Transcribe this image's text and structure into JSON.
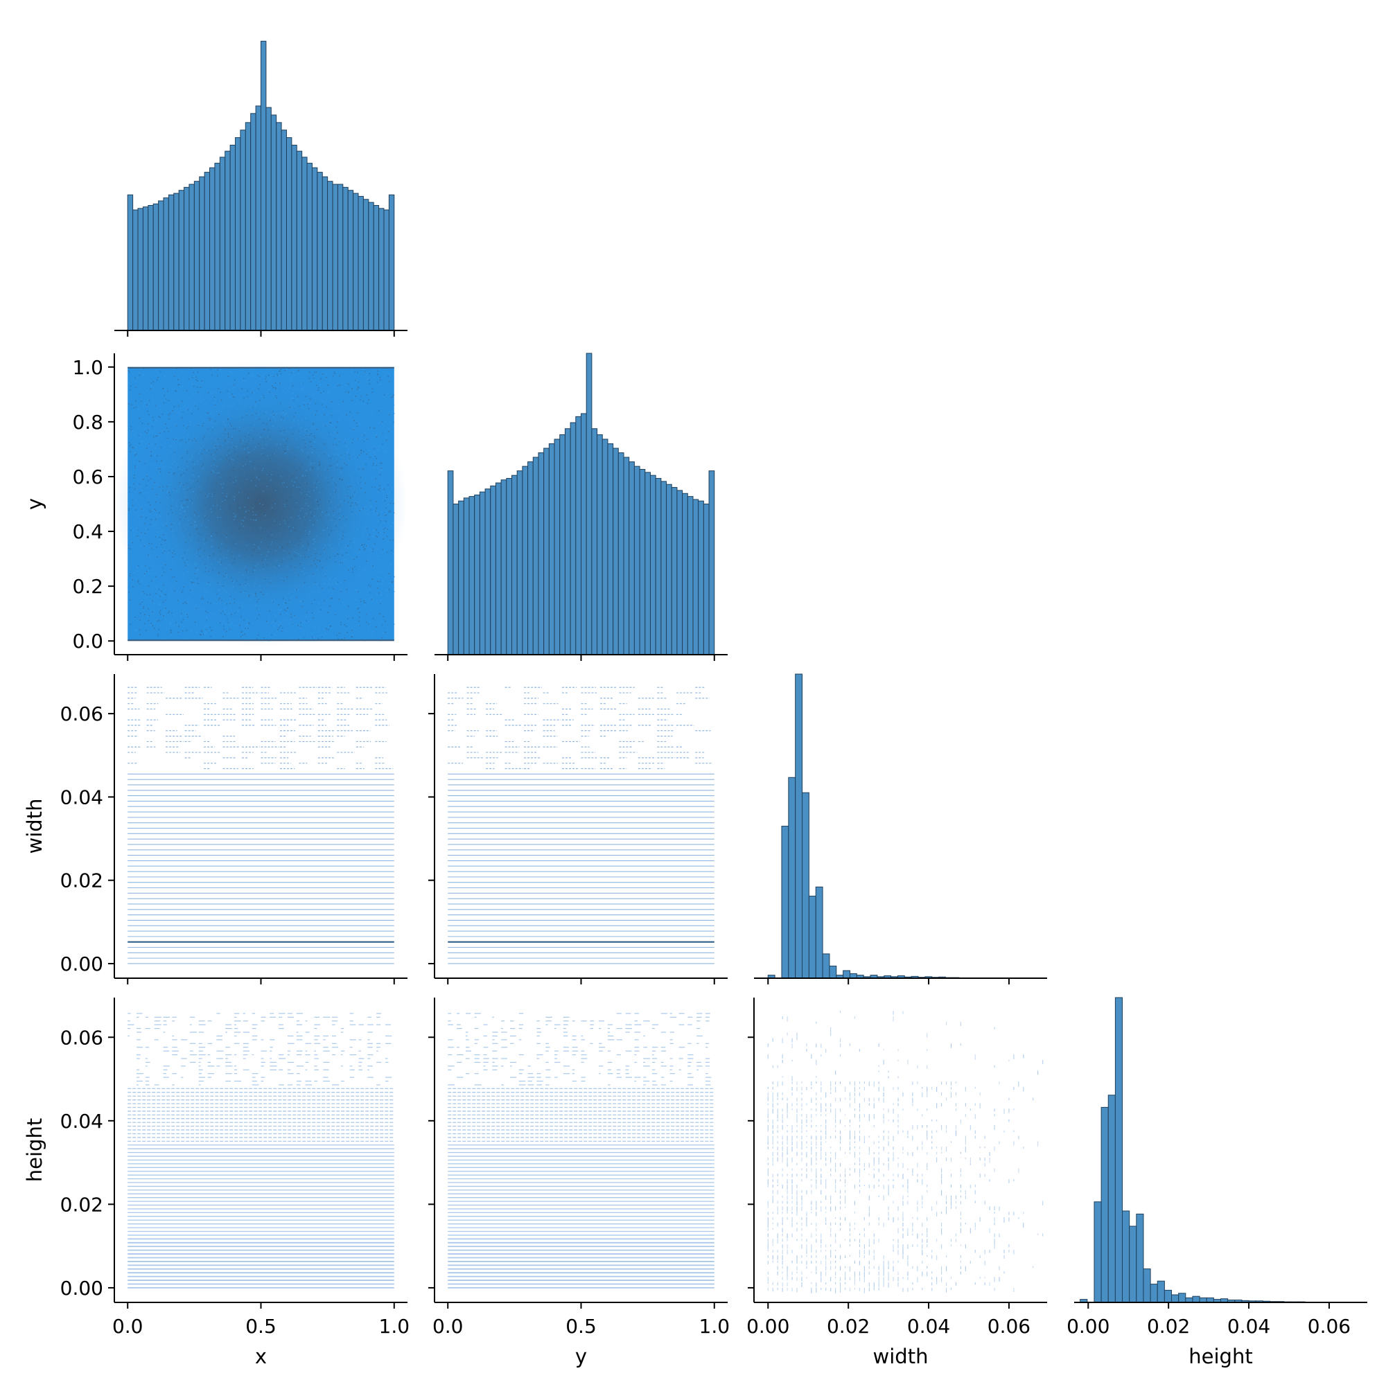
{
  "chart_data": {
    "type": "pairplot",
    "variables": [
      "x",
      "y",
      "width",
      "height"
    ],
    "layout": "lower-triangle (corner) grid",
    "diagonal": "histogram",
    "off_diagonal": "2D histogram",
    "colors": {
      "hist_fill": "#4a8fc4",
      "hist_edge": "#1f3f5a",
      "density_high": "#3a5a78",
      "density_mid": "#2d8ad0",
      "density_base": "#2a90e0",
      "sparse": "#a9c8ea"
    },
    "axes": {
      "x": {
        "label": "x",
        "range": [
          -0.05,
          1.05
        ],
        "ticks": [
          0.0,
          0.5,
          1.0
        ],
        "tick_labels": [
          "0.0",
          "0.5",
          "1.0"
        ]
      },
      "y": {
        "label": "y",
        "range": [
          -0.05,
          1.05
        ],
        "ticks": [
          0.0,
          0.2,
          0.4,
          0.6,
          0.8,
          1.0
        ],
        "tick_labels": [
          "0.0",
          "0.2",
          "0.4",
          "0.6",
          "0.8",
          "1.0"
        ],
        "x_ticks": [
          0.0,
          0.5,
          1.0
        ],
        "x_tick_labels": [
          "0.0",
          "0.5",
          "1.0"
        ]
      },
      "width": {
        "label": "width",
        "range": [
          -0.0035,
          0.0695
        ],
        "ticks": [
          0.0,
          0.02,
          0.04,
          0.06
        ],
        "tick_labels": [
          "0.00",
          "0.02",
          "0.04",
          "0.06"
        ]
      },
      "height": {
        "label": "height",
        "range": [
          -0.0035,
          0.0695
        ],
        "ticks": [
          0.0,
          0.02,
          0.04,
          0.06
        ],
        "tick_labels": [
          "0.00",
          "0.02",
          "0.04",
          "0.06"
        ]
      }
    },
    "histograms": {
      "x": {
        "bin_range": [
          0.0,
          1.0
        ],
        "counts": [
          0.45,
          0.4,
          0.405,
          0.41,
          0.415,
          0.42,
          0.43,
          0.44,
          0.45,
          0.455,
          0.465,
          0.475,
          0.485,
          0.495,
          0.51,
          0.525,
          0.54,
          0.555,
          0.575,
          0.595,
          0.615,
          0.64,
          0.665,
          0.69,
          0.72,
          0.745,
          0.96,
          0.74,
          0.715,
          0.69,
          0.665,
          0.64,
          0.615,
          0.595,
          0.575,
          0.555,
          0.54,
          0.525,
          0.51,
          0.495,
          0.485,
          0.485,
          0.475,
          0.465,
          0.455,
          0.445,
          0.435,
          0.425,
          0.415,
          0.405,
          0.4,
          0.45
        ]
      },
      "y": {
        "bin_range": [
          0.0,
          1.0
        ],
        "counts": [
          0.61,
          0.5,
          0.51,
          0.52,
          0.525,
          0.53,
          0.54,
          0.55,
          0.56,
          0.57,
          0.58,
          0.585,
          0.595,
          0.61,
          0.625,
          0.64,
          0.655,
          0.67,
          0.685,
          0.7,
          0.715,
          0.73,
          0.75,
          0.77,
          0.79,
          0.8,
          1.0,
          0.75,
          0.73,
          0.715,
          0.7,
          0.685,
          0.67,
          0.655,
          0.64,
          0.625,
          0.615,
          0.605,
          0.595,
          0.585,
          0.575,
          0.565,
          0.555,
          0.545,
          0.535,
          0.525,
          0.515,
          0.51,
          0.5,
          0.61
        ]
      },
      "width": {
        "bin_range": [
          0.0,
          0.068
        ],
        "counts": [
          0.01,
          0.0,
          0.5,
          0.66,
          1.0,
          0.61,
          0.27,
          0.3,
          0.08,
          0.04,
          0.01,
          0.025,
          0.015,
          0.01,
          0.005,
          0.01,
          0.005,
          0.008,
          0.005,
          0.008,
          0.004,
          0.006,
          0.003,
          0.005,
          0.003,
          0.004,
          0.002,
          0.002,
          0.001,
          0.001,
          0.001,
          0.001,
          0.0005,
          0.0005,
          0.0005,
          0.0005,
          0.0005,
          0.0003,
          0.0003,
          0.0002
        ]
      },
      "height": {
        "bin_range": [
          -0.002,
          0.068
        ],
        "counts": [
          0.01,
          0.0,
          0.33,
          0.64,
          0.68,
          1.0,
          0.3,
          0.25,
          0.29,
          0.11,
          0.06,
          0.07,
          0.04,
          0.025,
          0.03,
          0.015,
          0.02,
          0.015,
          0.015,
          0.01,
          0.012,
          0.008,
          0.008,
          0.006,
          0.005,
          0.005,
          0.004,
          0.003,
          0.003,
          0.002,
          0.002,
          0.002,
          0.001,
          0.001,
          0.001,
          0.0008,
          0.0005,
          0.0005,
          0.0003,
          0.0003
        ]
      }
    },
    "scatter_panels": [
      {
        "x": "x",
        "y": "y",
        "pattern": "uniform square density, darker concentration centered at (0.5, 0.5)"
      },
      {
        "x": "x",
        "y": "width",
        "pattern": "horizontal banding at discrete width values"
      },
      {
        "x": "y",
        "y": "width",
        "pattern": "horizontal banding at discrete width values"
      },
      {
        "x": "x",
        "y": "height",
        "pattern": "dense horizontal bands, sparse above 0.05"
      },
      {
        "x": "y",
        "y": "height",
        "pattern": "dense horizontal bands, sparse above 0.05"
      },
      {
        "x": "width",
        "y": "height",
        "pattern": "sparse grid-like scatter, denser at low width"
      }
    ]
  }
}
